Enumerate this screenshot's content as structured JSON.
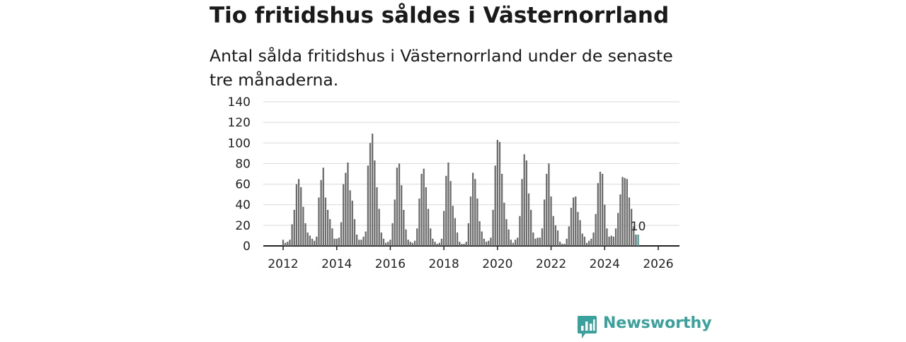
{
  "header": {
    "title": "Tio fritidshus såldes i Västernorrland",
    "subtitle": "Antal sålda fritidshus i Västernorrland under de senaste tre månaderna."
  },
  "brand": {
    "name": "Newsworthy",
    "color": "#3aa19c"
  },
  "chart_data": {
    "type": "bar",
    "title": "Tio fritidshus såldes i Västernorrland",
    "subtitle": "Antal sålda fritidshus i Västernorrland under de senaste tre månaderna.",
    "xlabel": "",
    "ylabel": "",
    "ylim": [
      0,
      140
    ],
    "yticks": [
      0,
      20,
      40,
      60,
      80,
      100,
      120,
      140
    ],
    "xticks": [
      "2012",
      "2014",
      "2016",
      "2018",
      "2020",
      "2022",
      "2024",
      "2026"
    ],
    "grid": true,
    "bar_color": "#6b6b6b",
    "highlight_color": "#3aa19c",
    "highlight_label": "10",
    "start": "2012-01",
    "frequency": "monthly",
    "values": [
      6,
      3,
      4,
      6,
      21,
      35,
      60,
      65,
      57,
      38,
      22,
      13,
      10,
      7,
      5,
      9,
      47,
      64,
      76,
      47,
      35,
      26,
      17,
      7,
      7,
      8,
      23,
      60,
      71,
      81,
      54,
      44,
      26,
      11,
      6,
      6,
      9,
      14,
      78,
      100,
      109,
      83,
      57,
      36,
      13,
      7,
      3,
      4,
      6,
      22,
      45,
      76,
      80,
      59,
      35,
      16,
      6,
      4,
      3,
      5,
      17,
      46,
      70,
      75,
      57,
      36,
      17,
      7,
      4,
      2,
      3,
      7,
      34,
      68,
      81,
      63,
      39,
      27,
      13,
      4,
      2,
      2,
      4,
      22,
      48,
      71,
      65,
      46,
      24,
      14,
      7,
      4,
      5,
      8,
      35,
      78,
      103,
      101,
      70,
      42,
      26,
      16,
      6,
      3,
      6,
      8,
      29,
      65,
      89,
      83,
      51,
      35,
      13,
      7,
      8,
      8,
      17,
      45,
      70,
      80,
      48,
      29,
      20,
      15,
      4,
      2,
      2,
      7,
      19,
      37,
      47,
      48,
      33,
      25,
      12,
      9,
      3,
      5,
      7,
      13,
      31,
      61,
      72,
      70,
      40,
      17,
      9,
      10,
      9,
      17,
      32,
      50,
      67,
      66,
      65,
      47,
      36,
      19,
      11,
      11
    ]
  }
}
